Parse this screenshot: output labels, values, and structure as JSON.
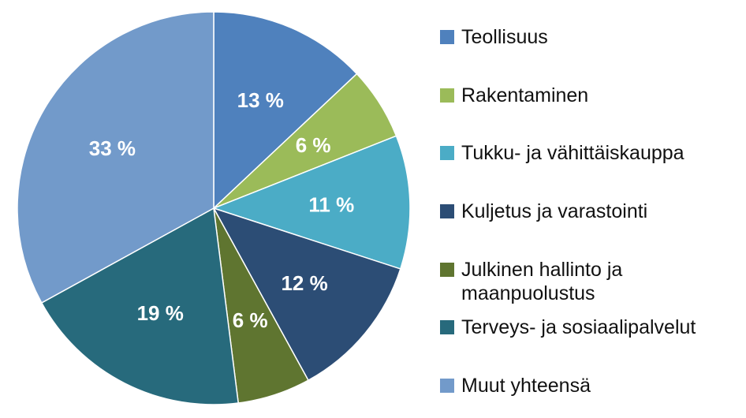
{
  "chart_data": {
    "type": "pie",
    "categories": [
      "Teollisuus",
      "Rakentaminen",
      "Tukku- ja vähittäiskauppa",
      "Kuljetus ja varastointi",
      "Julkinen hallinto ja maanpuolustus",
      "Terveys- ja sosiaalipalvelut",
      "Muut yhteensä"
    ],
    "values": [
      13,
      6,
      11,
      12,
      6,
      19,
      33
    ],
    "data_labels": [
      "13 %",
      "6 %",
      "11 %",
      "12 %",
      "6 %",
      "19 %",
      "33 %"
    ],
    "colors": [
      "#4f81bd",
      "#9bbb59",
      "#4bacc6",
      "#2c4d75",
      "#5f7530",
      "#276a7c",
      "#729aca"
    ],
    "legend_lines": [
      [
        "Teollisuus"
      ],
      [
        "Rakentaminen"
      ],
      [
        "Tukku- ja vähittäiskauppa"
      ],
      [
        "Kuljetus ja varastointi"
      ],
      [
        "Julkinen hallinto ja",
        "maanpuolustus"
      ],
      [
        "Terveys- ja sosiaalipalvelut"
      ],
      [
        "Muut yhteensä"
      ]
    ],
    "legend_position": "right",
    "start_angle": "12 o'clock",
    "direction": "clockwise"
  }
}
